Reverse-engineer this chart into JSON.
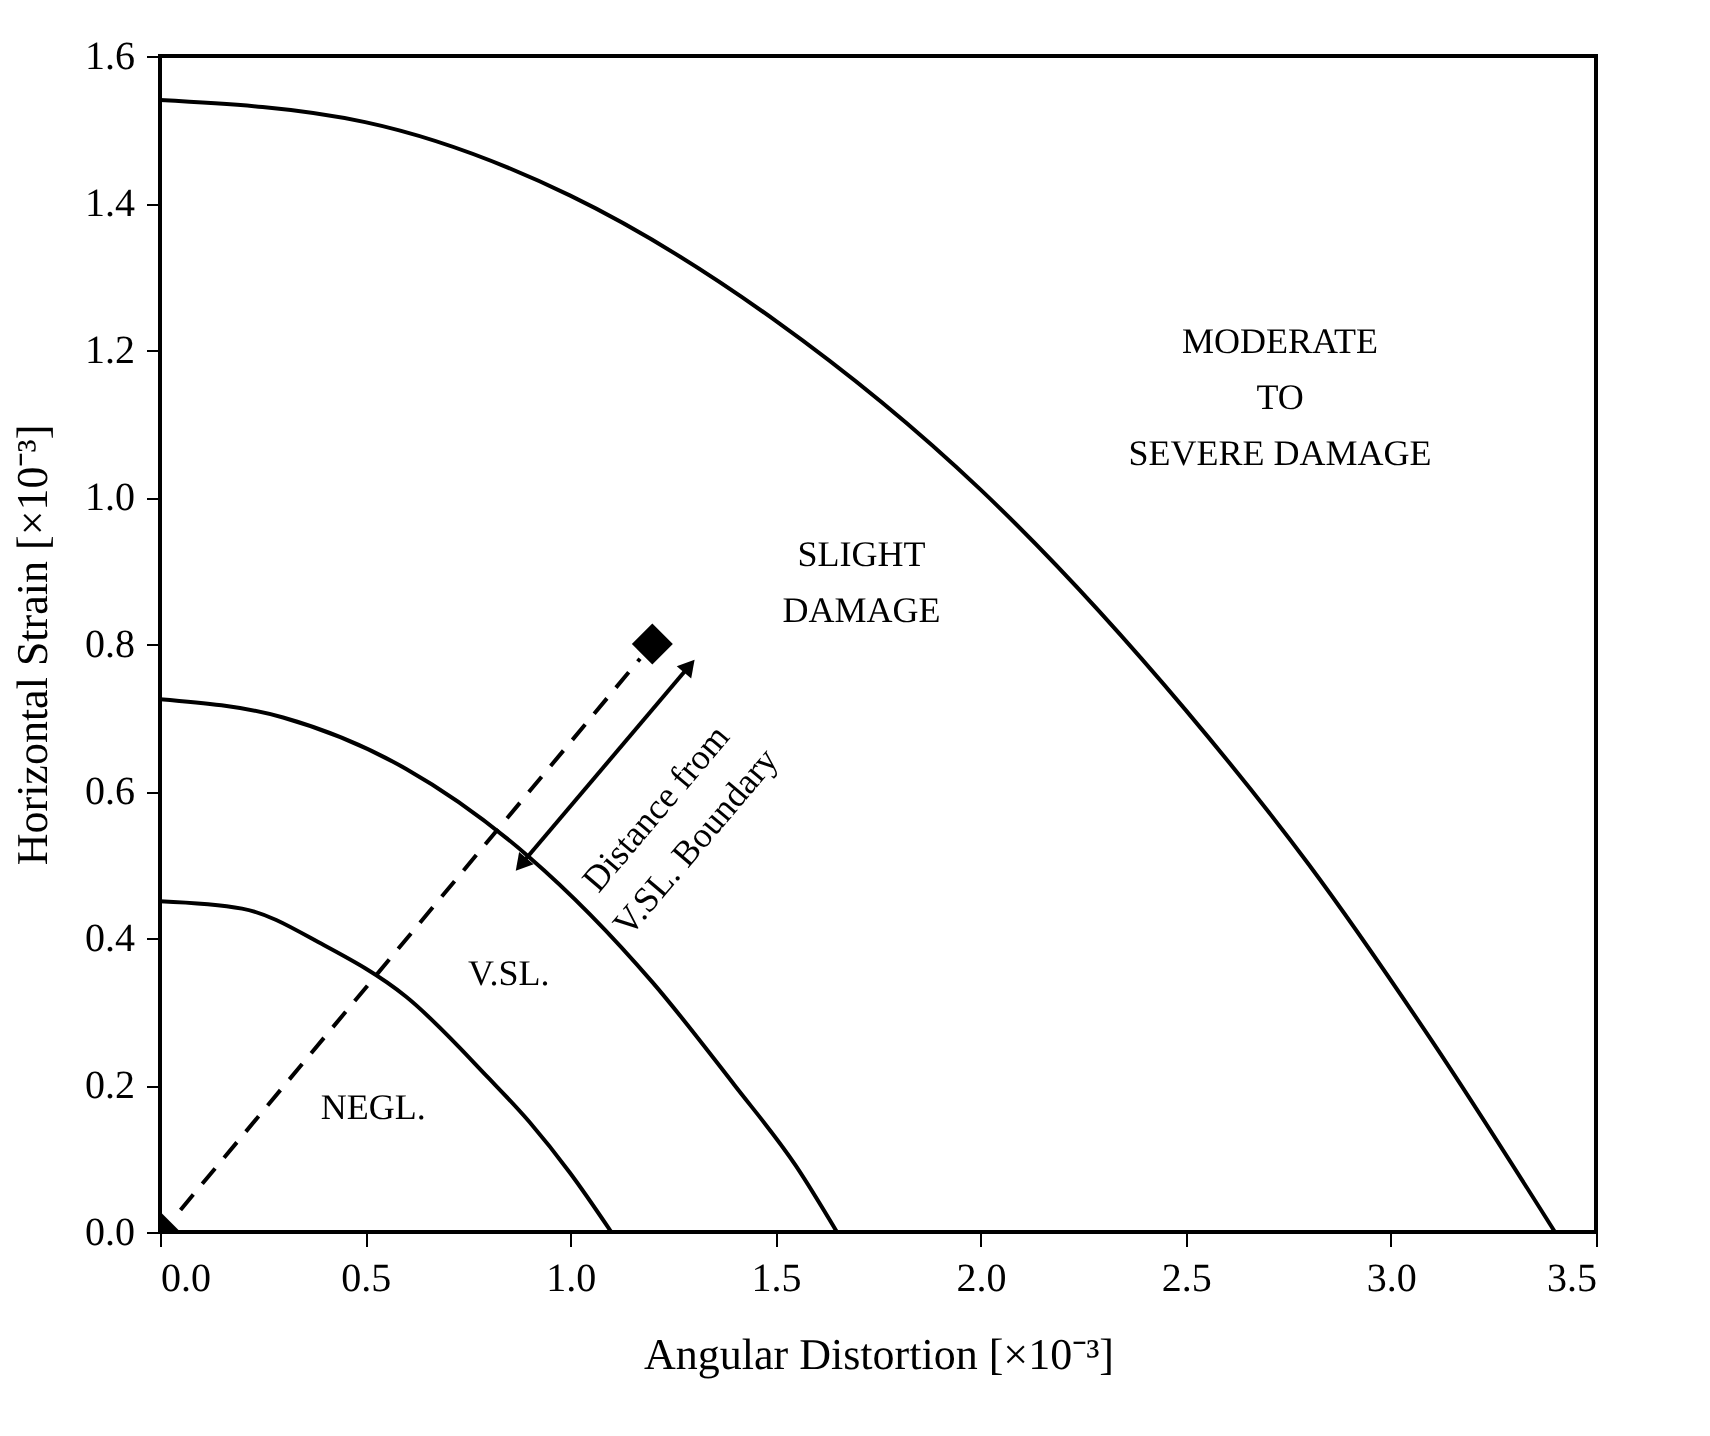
{
  "chart_data": {
    "type": "line",
    "xlabel": "Angular Distortion [×10⁻³]",
    "ylabel": "Horizontal Strain [×10⁻³]",
    "xlim": [
      0,
      3.5
    ],
    "xticks": [
      {
        "value": 0,
        "label": "0.0"
      },
      0.5,
      {
        "value": 1,
        "label": "1.0"
      },
      1.5,
      {
        "value": 2,
        "label": "2.0"
      },
      2.5,
      {
        "value": 3,
        "label": "3.0"
      },
      3.5
    ],
    "ylim": [
      0,
      1.6
    ],
    "yticks": [
      {
        "value": 0,
        "label": "0.0"
      },
      0.2,
      0.4,
      0.6,
      0.8,
      {
        "value": 1,
        "label": "1.0"
      },
      1.2,
      1.4,
      1.6
    ],
    "grid": false,
    "series": [
      {
        "color": "#000000",
        "line_style": "solid",
        "x": [
          0,
          0.2,
          0.4,
          0.6,
          0.8,
          0.9,
          1.0,
          1.1
        ],
        "values": [
          0.45,
          0.44,
          0.39,
          0.32,
          0.21,
          0.15,
          0.08,
          0
        ]
      },
      {
        "color": "#000000",
        "line_style": "solid",
        "x": [
          0,
          0.3,
          0.6,
          0.9,
          1.2,
          1.4,
          1.55,
          1.65
        ],
        "values": [
          0.725,
          0.7,
          0.63,
          0.51,
          0.34,
          0.2,
          0.09,
          0
        ]
      },
      {
        "color": "#000000",
        "line_style": "solid",
        "x": [
          0,
          0.5,
          1.0,
          1.5,
          2.0,
          2.5,
          2.8,
          3.1,
          3.4
        ],
        "values": [
          1.54,
          1.51,
          1.41,
          1.24,
          1.01,
          0.71,
          0.5,
          0.26,
          0
        ]
      },
      {
        "type": "line",
        "color": "#000000",
        "line_style": "dashed",
        "x": [
          0.05,
          1.17
        ],
        "values": [
          0.03,
          0.78
        ]
      },
      {
        "type": "line",
        "color": "#000000",
        "line_style": "solid",
        "marker": "triangle",
        "x": [
          0.88,
          1.29
        ],
        "values": [
          0.5,
          0.77
        ]
      },
      {
        "type": "scatter",
        "color": "#000000",
        "marker": "diamond",
        "x": [
          0,
          1.2
        ],
        "values": [
          0,
          0.8
        ]
      }
    ],
    "annotations": [
      "MODERATE\nTO\nSEVERE DAMAGE",
      "SLIGHT\nDAMAGE",
      "V.SL.",
      "NEGL.",
      {
        "text": "Distance from\nV.SL. Boundary",
        "x": 1.085,
        "y": 0.635
      }
    ]
  }
}
